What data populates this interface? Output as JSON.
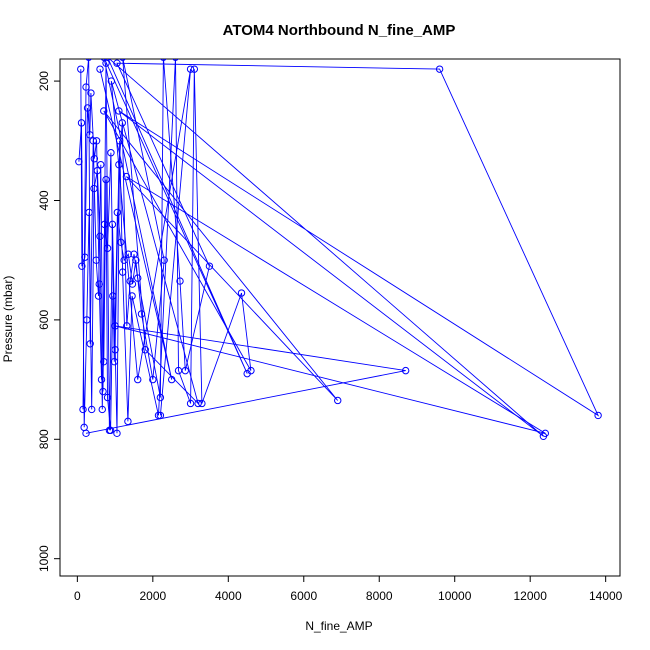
{
  "chart_data": {
    "type": "line",
    "title": "ATOM4 Northbound N_fine_AMP",
    "xlabel": "N_fine_AMP",
    "ylabel": "Pressure (mbar)",
    "xlim": [
      -460,
      14380
    ],
    "ylim": [
      1029,
      163
    ],
    "y_reversed": true,
    "x_ticks": [
      0,
      2000,
      4000,
      6000,
      8000,
      10000,
      12000,
      14000
    ],
    "x_tick_labels": [
      "0",
      "2000",
      "4000",
      "6000",
      "8000",
      "10000",
      "12000",
      "14000"
    ],
    "y_ticks": [
      200,
      400,
      600,
      800,
      1000
    ],
    "y_tick_labels": [
      "200",
      "400",
      "600",
      "800",
      "1000"
    ],
    "line_color": "#0000ff",
    "grid": false,
    "legend": "none",
    "series": [
      {
        "points": [
          [
            150,
            750
          ],
          [
            230,
            210
          ],
          [
            300,
            160
          ],
          [
            340,
            640
          ],
          [
            420,
            300
          ],
          [
            500,
            500
          ],
          [
            560,
            560
          ],
          [
            620,
            340
          ],
          [
            680,
            720
          ],
          [
            760,
            170
          ],
          [
            850,
            785
          ],
          [
            930,
            440
          ],
          [
            1050,
            790
          ],
          [
            1120,
            300
          ],
          [
            1200,
            520
          ],
          [
            1340,
            770
          ],
          [
            1450,
            560
          ],
          [
            2150,
            760
          ],
          [
            2600,
            160
          ],
          [
            2680,
            685
          ],
          [
            3000,
            740
          ],
          [
            3100,
            180
          ],
          [
            3300,
            740
          ],
          [
            4350,
            555
          ],
          [
            4600,
            685
          ],
          [
            700,
            250
          ],
          [
            6900,
            735
          ],
          [
            1300,
            360
          ],
          [
            12400,
            790
          ],
          [
            1000,
            610
          ],
          [
            8700,
            685
          ],
          [
            230,
            790
          ]
        ]
      },
      {
        "points": [
          [
            90,
            180
          ],
          [
            120,
            510
          ],
          [
            200,
            495
          ],
          [
            270,
            245
          ],
          [
            330,
            290
          ],
          [
            360,
            220
          ],
          [
            450,
            330
          ],
          [
            510,
            300
          ],
          [
            580,
            540
          ],
          [
            640,
            700
          ],
          [
            700,
            670
          ],
          [
            760,
            365
          ],
          [
            800,
            730
          ],
          [
            880,
            785
          ],
          [
            940,
            560
          ],
          [
            1000,
            650
          ],
          [
            1100,
            340
          ],
          [
            1190,
            270
          ],
          [
            1310,
            610
          ],
          [
            1400,
            535
          ],
          [
            1500,
            490
          ],
          [
            1600,
            530
          ],
          [
            2200,
            730
          ],
          [
            2280,
            160
          ],
          [
            2720,
            535
          ],
          [
            2860,
            685
          ],
          [
            3500,
            510
          ],
          [
            1050,
            170
          ],
          [
            9600,
            180
          ],
          [
            13800,
            760
          ],
          [
            1100,
            250
          ],
          [
            12350,
            795
          ],
          [
            800,
            160
          ],
          [
            4500,
            690
          ],
          [
            700,
            160
          ],
          [
            2500,
            700
          ],
          [
            600,
            180
          ]
        ]
      },
      {
        "points": [
          [
            40,
            335
          ],
          [
            110,
            270
          ],
          [
            180,
            780
          ],
          [
            250,
            600
          ],
          [
            310,
            420
          ],
          [
            380,
            750
          ],
          [
            440,
            380
          ],
          [
            530,
            350
          ],
          [
            600,
            460
          ],
          [
            660,
            750
          ],
          [
            720,
            440
          ],
          [
            800,
            480
          ],
          [
            890,
            320
          ],
          [
            980,
            670
          ],
          [
            1060,
            420
          ],
          [
            1150,
            470
          ],
          [
            1240,
            500
          ],
          [
            1350,
            490
          ],
          [
            1460,
            540
          ],
          [
            1550,
            500
          ],
          [
            1700,
            590
          ],
          [
            2000,
            700
          ],
          [
            2300,
            500
          ],
          [
            1200,
            160
          ],
          [
            1800,
            650
          ],
          [
            3200,
            740
          ],
          [
            900,
            200
          ],
          [
            1600,
            700
          ],
          [
            3000,
            180
          ],
          [
            2200,
            760
          ]
        ]
      }
    ]
  }
}
